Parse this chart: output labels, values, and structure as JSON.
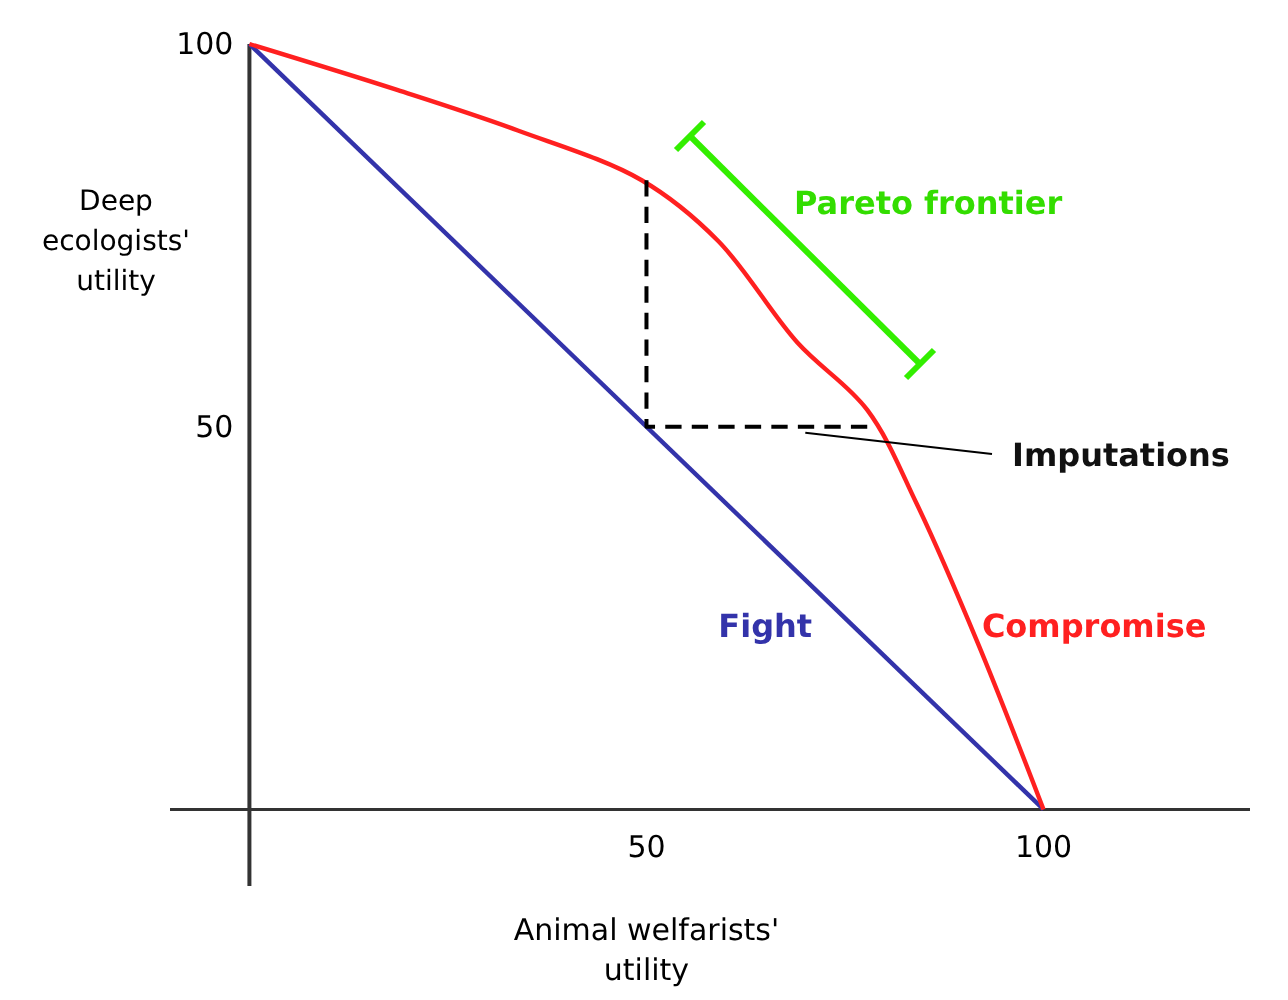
{
  "chart_data": {
    "type": "line",
    "xlabel": "Animal welfarists' utility",
    "ylabel": "Deep ecologists' utility",
    "xlim": [
      -10,
      126
    ],
    "ylim": [
      -10,
      100
    ],
    "xticks": [
      50,
      100
    ],
    "yticks": [
      50,
      100
    ],
    "grid": false,
    "marker": "none",
    "series": [
      {
        "name": "Fight",
        "color": "#3333aa",
        "x": [
          0,
          100
        ],
        "values": [
          100,
          0
        ]
      },
      {
        "name": "Compromise",
        "color": "#ff2020",
        "x": [
          0,
          18.6,
          33.8,
          49.4,
          59,
          69,
          77.8,
          84,
          91.7,
          100
        ],
        "values": [
          100,
          94,
          88.7,
          82.2,
          74.3,
          61,
          52.2,
          40,
          21.8,
          0
        ]
      },
      {
        "color": "#000000",
        "line_style": "dashed",
        "x": [
          50,
          50,
          77.8
        ],
        "values": [
          82.2,
          50,
          50
        ]
      }
    ],
    "annotations": [
      "Pareto frontier",
      {
        "text": "Imputations",
        "x": 70,
        "y": 50
      }
    ]
  }
}
